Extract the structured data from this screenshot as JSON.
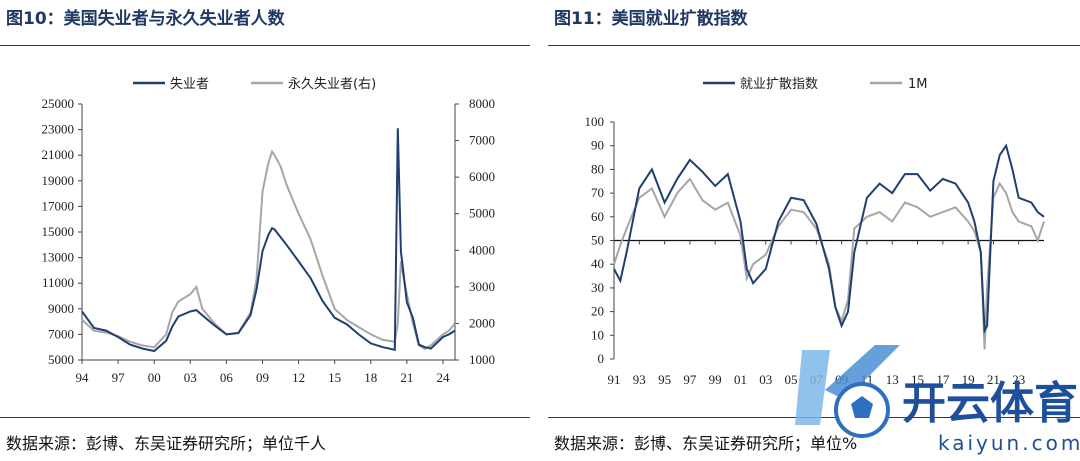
{
  "figures": [
    {
      "id": "fig10",
      "title": "图10：美国失业者与永久失业者人数",
      "source": "数据来源：彭博、东吴证券研究所；单位千人"
    },
    {
      "id": "fig11",
      "title": "图11：美国就业扩散指数",
      "source": "数据来源：彭博、东吴证券研究所；单位%"
    }
  ],
  "watermark": {
    "brand": "开云体育",
    "domain": "kaiyun.com"
  },
  "colors": {
    "navy": "#1f3f6e",
    "gray": "#a6a6a6",
    "title": "#1f3864"
  },
  "chart_data": [
    {
      "type": "line",
      "title": "",
      "xlabel": "",
      "ylabel": "",
      "x_ticks": [
        "94",
        "97",
        "00",
        "03",
        "06",
        "09",
        "12",
        "15",
        "18",
        "21",
        "24"
      ],
      "y_left_ticks": [
        "25000",
        "23000",
        "21000",
        "19000",
        "17000",
        "15000",
        "13000",
        "11000",
        "9000",
        "7000",
        "5000"
      ],
      "y_right_ticks": [
        "8000",
        "7000",
        "6000",
        "5000",
        "4000",
        "3000",
        "2000",
        "1000"
      ],
      "ylim_left": [
        5000,
        25000
      ],
      "ylim_right": [
        1000,
        8000
      ],
      "xlim": [
        1994,
        2025
      ],
      "legend_position": "top",
      "series": [
        {
          "name": "失业者",
          "axis": "left",
          "color": "#1f3f6e",
          "x": [
            1994,
            1995,
            1996,
            1997,
            1998,
            1999,
            2000,
            2001,
            2001.5,
            2002,
            2003,
            2003.5,
            2004,
            2005,
            2006,
            2007,
            2008,
            2008.5,
            2009,
            2009.5,
            2009.8,
            2010,
            2010.5,
            2011,
            2012,
            2013,
            2014,
            2015,
            2016,
            2017,
            2018,
            2019,
            2020,
            2020.25,
            2020.33,
            2020.5,
            2020.75,
            2021,
            2021.5,
            2022,
            2022.5,
            2023,
            2024,
            2024.5,
            2025
          ],
          "values": [
            8800,
            7500,
            7300,
            6800,
            6200,
            5900,
            5700,
            6500,
            7600,
            8400,
            8800,
            8900,
            8500,
            7700,
            7000,
            7100,
            8500,
            10500,
            13500,
            14800,
            15300,
            15200,
            14600,
            14000,
            12700,
            11400,
            9600,
            8300,
            7800,
            7000,
            6300,
            6000,
            5800,
            23100,
            20000,
            13500,
            11500,
            9500,
            8300,
            6200,
            6000,
            5900,
            6800,
            7000,
            7300
          ]
        },
        {
          "name": "永久失业者(右)",
          "axis": "right",
          "color": "#a6a6a6",
          "x": [
            1994,
            1995,
            1996,
            1997,
            1998,
            1999,
            2000,
            2001,
            2001.5,
            2002,
            2003,
            2003.5,
            2004,
            2005,
            2006,
            2007,
            2008,
            2008.5,
            2009,
            2009.5,
            2009.8,
            2010,
            2010.5,
            2011,
            2012,
            2013,
            2014,
            2015,
            2016,
            2017,
            2018,
            2019,
            2020,
            2020.25,
            2020.5,
            2020.75,
            2021,
            2021.5,
            2022,
            2022.5,
            2023,
            2024,
            2024.5,
            2025
          ],
          "values": [
            2100,
            1800,
            1750,
            1650,
            1500,
            1400,
            1350,
            1700,
            2300,
            2600,
            2800,
            3000,
            2400,
            2000,
            1700,
            1750,
            2300,
            3200,
            5600,
            6400,
            6700,
            6600,
            6300,
            5800,
            5000,
            4300,
            3300,
            2400,
            2100,
            1900,
            1700,
            1550,
            1500,
            2000,
            3700,
            3200,
            2800,
            2000,
            1400,
            1300,
            1400,
            1700,
            1800,
            2000
          ]
        }
      ]
    },
    {
      "type": "line",
      "title": "",
      "xlabel": "",
      "ylabel": "",
      "x_ticks": [
        "91",
        "93",
        "95",
        "97",
        "99",
        "01",
        "03",
        "05",
        "07",
        "09",
        "11",
        "13",
        "15",
        "17",
        "19",
        "21",
        "23"
      ],
      "y_ticks": [
        "100",
        "90",
        "80",
        "70",
        "60",
        "50",
        "40",
        "30",
        "20",
        "10",
        "0"
      ],
      "ylim": [
        0,
        100
      ],
      "xlim": [
        1991,
        2025
      ],
      "reference_line": 50,
      "legend_position": "top",
      "series": [
        {
          "name": "就业扩散指数",
          "color": "#1f3f6e",
          "x": [
            1991,
            1991.5,
            1992,
            1993,
            1994,
            1995,
            1996,
            1997,
            1998,
            1999,
            2000,
            2001,
            2001.5,
            2002,
            2003,
            2004,
            2005,
            2006,
            2007,
            2008,
            2008.5,
            2009,
            2009.5,
            2010,
            2011,
            2012,
            2013,
            2014,
            2015,
            2016,
            2017,
            2018,
            2019,
            2019.5,
            2020,
            2020.3,
            2020.5,
            2021,
            2021.5,
            2022,
            2022.5,
            2023,
            2024,
            2024.5,
            2025
          ],
          "values": [
            38,
            33,
            45,
            72,
            80,
            66,
            76,
            84,
            79,
            73,
            78,
            58,
            38,
            32,
            38,
            58,
            68,
            67,
            57,
            38,
            22,
            14,
            20,
            45,
            68,
            74,
            70,
            78,
            78,
            71,
            76,
            74,
            66,
            58,
            45,
            12,
            14,
            75,
            86,
            90,
            80,
            68,
            66,
            62,
            60
          ]
        },
        {
          "name": "1M",
          "color": "#a6a6a6",
          "x": [
            1991,
            1991.5,
            1992,
            1993,
            1994,
            1995,
            1996,
            1997,
            1998,
            1999,
            2000,
            2001,
            2001.5,
            2002,
            2003,
            2004,
            2005,
            2006,
            2007,
            2008,
            2008.5,
            2009,
            2009.5,
            2010,
            2011,
            2012,
            2013,
            2014,
            2015,
            2016,
            2017,
            2018,
            2019,
            2019.5,
            2020,
            2020.3,
            2020.5,
            2021,
            2021.5,
            2022,
            2022.5,
            2023,
            2024,
            2024.5,
            2025
          ],
          "values": [
            40,
            48,
            55,
            68,
            72,
            60,
            70,
            76,
            67,
            63,
            66,
            52,
            34,
            40,
            44,
            56,
            63,
            62,
            55,
            40,
            22,
            16,
            25,
            55,
            60,
            62,
            58,
            66,
            64,
            60,
            62,
            64,
            58,
            54,
            45,
            4,
            30,
            68,
            74,
            70,
            62,
            58,
            56,
            50,
            58
          ]
        }
      ]
    }
  ]
}
